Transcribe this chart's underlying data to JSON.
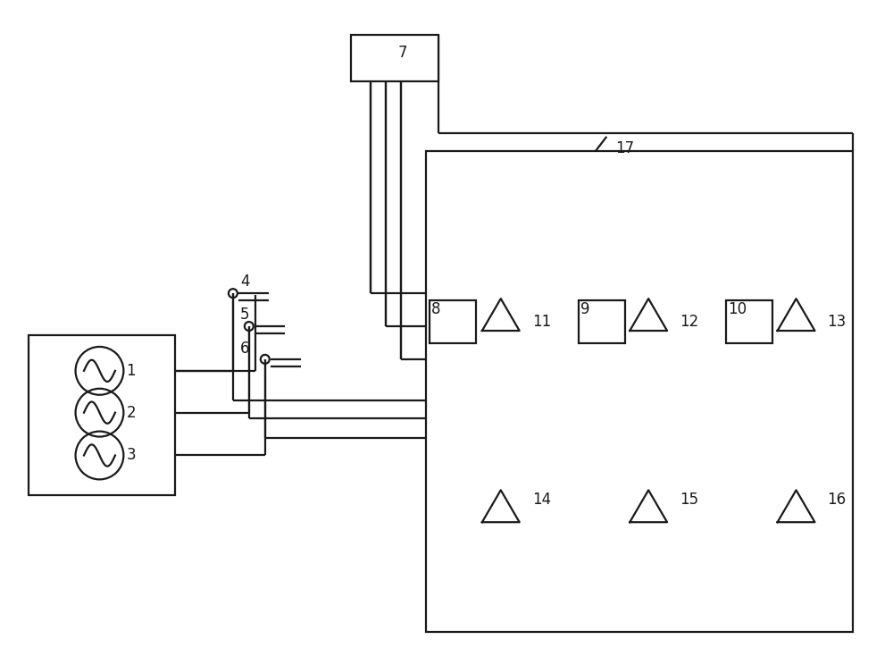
{
  "bg_color": "#ffffff",
  "line_color": "#1a1a1a",
  "lw": 1.6,
  "figsize": [
    10.0,
    7.44
  ],
  "dpi": 100
}
